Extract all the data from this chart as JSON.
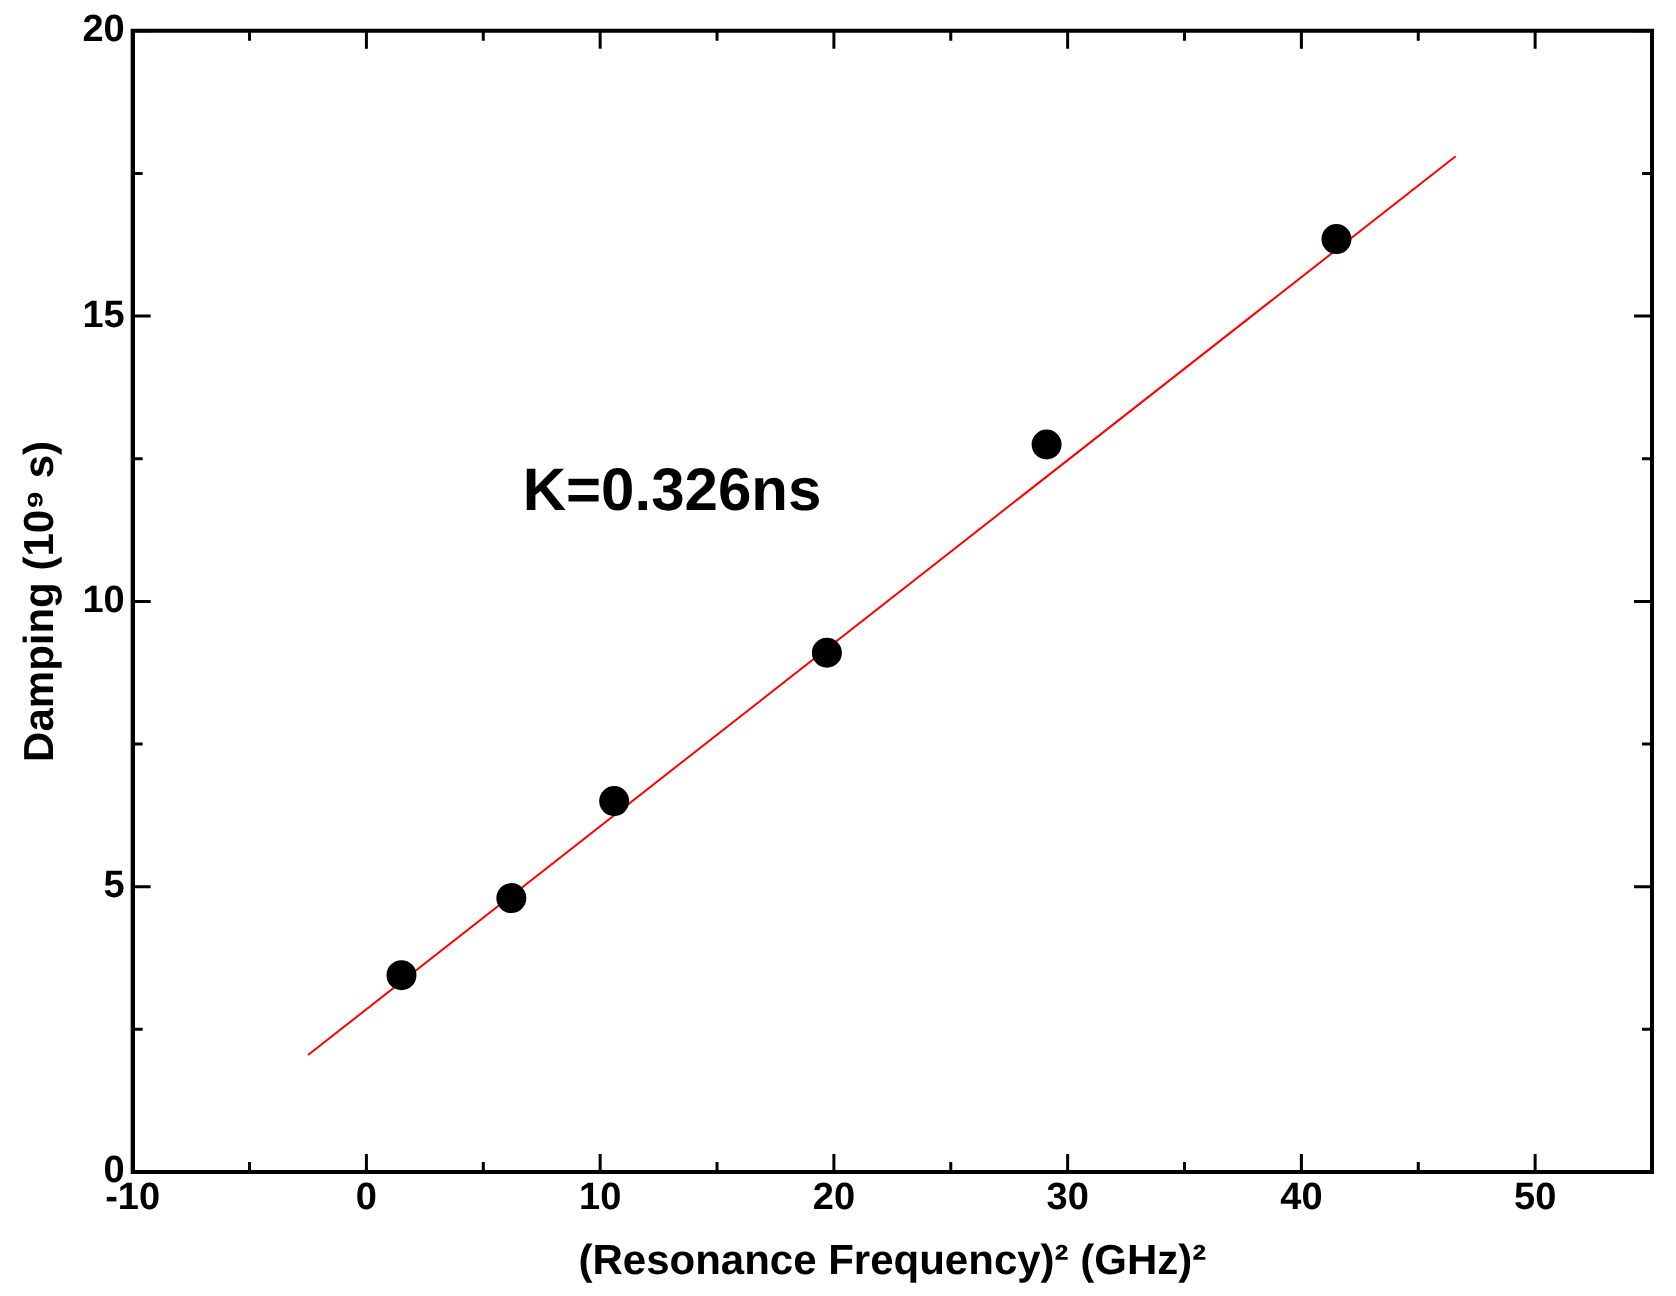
{
  "chart_data": {
    "type": "scatter",
    "xlabel": "(Resonance Frequency)² (GHz)²",
    "ylabel": "Damping (10⁹ s)",
    "xlim": [
      -10,
      55
    ],
    "ylim": [
      0,
      20
    ],
    "xticks": [
      -10,
      {
        "value": -5,
        "label": null
      },
      0,
      {
        "value": 5,
        "label": null
      },
      10,
      {
        "value": 15,
        "label": null
      },
      20,
      {
        "value": 25,
        "label": null
      },
      30,
      {
        "value": 35,
        "label": null
      },
      40,
      {
        "value": 45,
        "label": null
      },
      50
    ],
    "yticks": [
      0,
      {
        "value": 2.5,
        "label": null
      },
      5,
      {
        "value": 7.5,
        "label": null
      },
      10,
      {
        "value": 12.5,
        "label": null
      },
      15,
      {
        "value": 17.5,
        "label": null
      },
      20
    ],
    "grid": false,
    "legend": false,
    "marker": "circle",
    "series": [
      {
        "color": "#000000",
        "x": [
          1.5,
          6.2,
          10.6,
          19.7,
          29.1,
          41.5
        ],
        "values": [
          3.45,
          4.8,
          6.5,
          9.1,
          12.75,
          16.35
        ]
      },
      {
        "type": "line",
        "color": "#ff0000",
        "marker": "none",
        "line_style": "solid",
        "x": [
          -2.5,
          46.6
        ],
        "values": [
          2.05,
          17.8
        ]
      }
    ],
    "annotations": [
      "K=0.326ns"
    ]
  }
}
